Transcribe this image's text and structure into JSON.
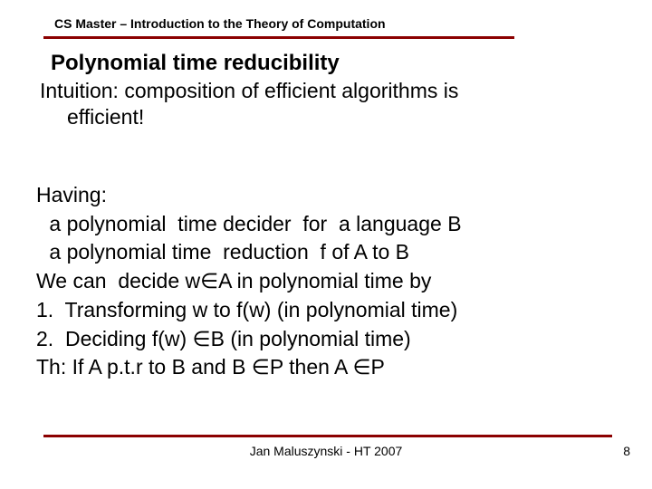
{
  "colors": {
    "rule": "#8b0000",
    "text": "#000000",
    "background": "#ffffff"
  },
  "fonts": {
    "body": "Arial",
    "footer": "Comic Sans MS"
  },
  "header": {
    "course": "CS Master – Introduction to the Theory of Computation"
  },
  "title": "Polynomial time reducibility",
  "intuition": {
    "line1": "Intuition: composition of efficient algorithms is",
    "line2": "efficient!"
  },
  "body": {
    "having": "Having:",
    "deciderLine": " a polynomial  time decider  for  a language B",
    "reductionLine": " a polynomial time  reduction  f of A to B",
    "decide": "We can  decide w∈A in polynomial time by",
    "step1": "1.  Transforming w to f(w) (in polynomial time)",
    "step2": "2.  Deciding f(w) ∈B (in polynomial time)",
    "theorem": "Th: If A p.t.r to B and B ∈P then A ∈P"
  },
  "footer": {
    "center": "Jan Maluszynski - HT 2007",
    "page": "8"
  }
}
